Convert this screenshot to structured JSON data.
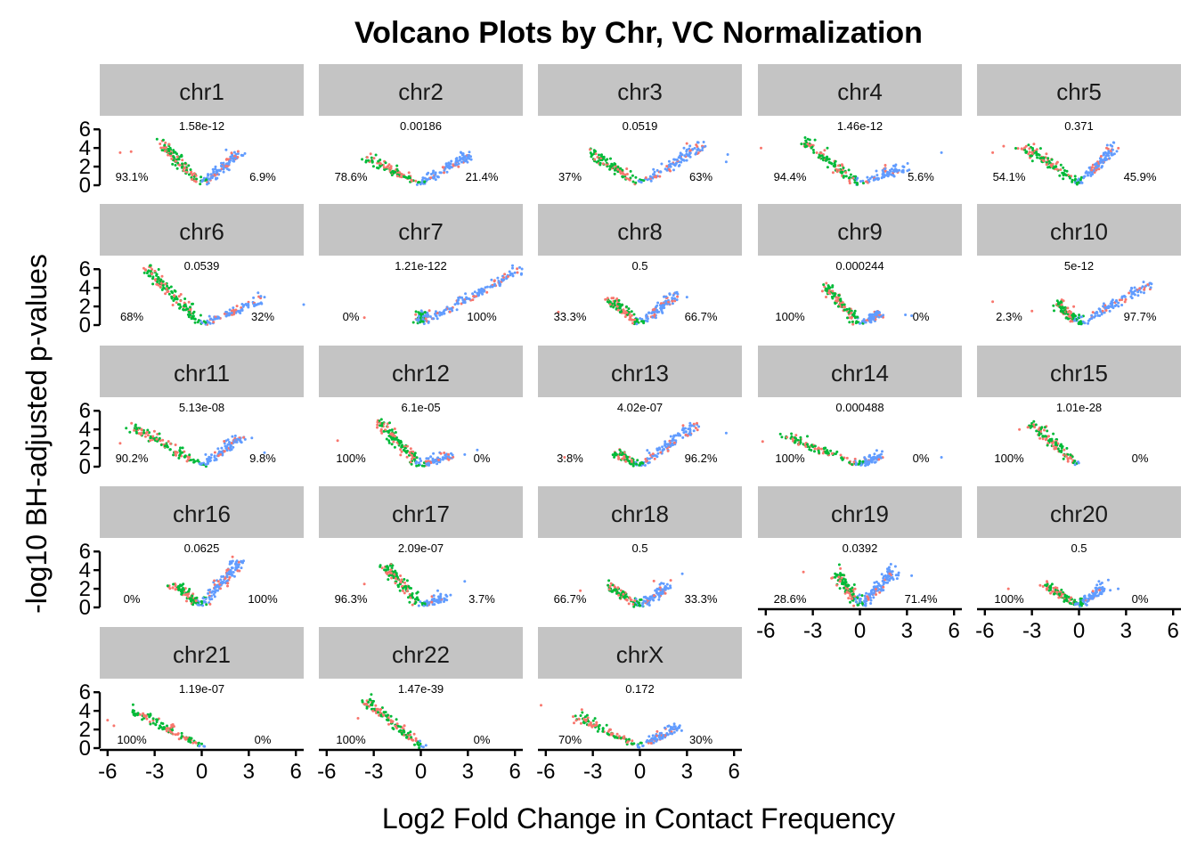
{
  "chart_data": {
    "type": "scatter",
    "title": "Volcano Plots by Chr, VC Normalization",
    "xlabel": "Log2 Fold Change in Contact Frequency",
    "ylabel": "-log10 BH-adjusted p-values",
    "xlim": [
      -6.5,
      6.5
    ],
    "ylim": [
      0,
      6.5
    ],
    "x_ticks": [
      "-6",
      "-3",
      "0",
      "3",
      "6"
    ],
    "y_ticks": [
      "0",
      "2",
      "4",
      "6"
    ],
    "grid": false,
    "legend": "none",
    "series_colors": [
      "#F8766D",
      "#00BA38",
      "#619CFF"
    ],
    "facets": [
      {
        "label": "chr1",
        "pvalue": "1.58e-12",
        "left_pct": "93.1%",
        "right_pct": "6.9%",
        "left_x": -2.5,
        "left_y": 4.0,
        "right_x": 2.3,
        "right_y": 3.0,
        "outliers": [
          [
            -5.2,
            3.5
          ],
          [
            -4.5,
            3.6
          ]
        ]
      },
      {
        "label": "chr2",
        "pvalue": "0.00186",
        "left_pct": "78.6%",
        "right_pct": "21.4%",
        "left_x": -3.5,
        "left_y": 2.6,
        "right_x": 3.0,
        "right_y": 2.8,
        "outliers": []
      },
      {
        "label": "chr3",
        "pvalue": "0.0519",
        "left_pct": "37%",
        "right_pct": "63%",
        "left_x": -3.2,
        "left_y": 3.2,
        "right_x": 4.0,
        "right_y": 3.8,
        "outliers": [
          [
            5.5,
            2.5
          ],
          [
            5.6,
            3.3
          ]
        ]
      },
      {
        "label": "chr4",
        "pvalue": "1.46e-12",
        "left_pct": "94.4%",
        "right_pct": "5.6%",
        "left_x": -3.5,
        "left_y": 4.2,
        "right_x": 2.8,
        "right_y": 1.5,
        "outliers": [
          [
            -6.3,
            4.0
          ],
          [
            5.2,
            3.5
          ]
        ]
      },
      {
        "label": "chr5",
        "pvalue": "0.371",
        "left_pct": "54.1%",
        "right_pct": "45.9%",
        "left_x": -3.5,
        "left_y": 3.8,
        "right_x": 2.2,
        "right_y": 3.6,
        "outliers": [
          [
            -4.8,
            4.2
          ],
          [
            -5.5,
            3.5
          ]
        ]
      },
      {
        "label": "chr6",
        "pvalue": "0.0539",
        "left_pct": "68%",
        "right_pct": "32%",
        "left_x": -3.5,
        "left_y": 5.8,
        "right_x": 3.8,
        "right_y": 2.2,
        "outliers": [
          [
            6.5,
            2.2
          ],
          [
            4.0,
            3.0
          ]
        ]
      },
      {
        "label": "chr7",
        "pvalue": "1.21e-122",
        "left_pct": "0%",
        "right_pct": "100%",
        "left_x": 0.2,
        "left_y": 1.0,
        "right_x": 6.4,
        "right_y": 5.5,
        "outliers": [
          [
            -3.6,
            0.8
          ]
        ]
      },
      {
        "label": "chr8",
        "pvalue": "0.5",
        "left_pct": "33.3%",
        "right_pct": "66.7%",
        "left_x": -1.9,
        "left_y": 2.5,
        "right_x": 2.3,
        "right_y": 2.9,
        "outliers": [
          [
            -5.2,
            1.4
          ],
          [
            3.0,
            3.0
          ]
        ]
      },
      {
        "label": "chr9",
        "pvalue": "0.000244",
        "left_pct": "100%",
        "right_pct": "0%",
        "left_x": -2.2,
        "left_y": 3.8,
        "right_x": 1.4,
        "right_y": 1.0,
        "outliers": [
          [
            3.3,
            1.0
          ],
          [
            2.9,
            1.1
          ]
        ]
      },
      {
        "label": "chr10",
        "pvalue": "5e-12",
        "left_pct": "2.3%",
        "right_pct": "97.7%",
        "left_x": -1.4,
        "left_y": 2.0,
        "right_x": 4.4,
        "right_y": 4.0,
        "outliers": [
          [
            -5.5,
            2.5
          ],
          [
            -3.0,
            1.5
          ]
        ]
      },
      {
        "label": "chr11",
        "pvalue": "5.13e-08",
        "left_pct": "90.2%",
        "right_pct": "9.8%",
        "left_x": -4.4,
        "left_y": 4.0,
        "right_x": 2.6,
        "right_y": 2.8,
        "outliers": [
          [
            -5.2,
            2.5
          ],
          [
            4.0,
            1.5
          ]
        ]
      },
      {
        "label": "chr12",
        "pvalue": "6.1e-05",
        "left_pct": "100%",
        "right_pct": "0%",
        "left_x": -2.7,
        "left_y": 4.5,
        "right_x": 2.0,
        "right_y": 1.0,
        "outliers": [
          [
            -5.3,
            2.8
          ],
          [
            3.6,
            1.8
          ],
          [
            2.8,
            1.3
          ]
        ]
      },
      {
        "label": "chr13",
        "pvalue": "4.02e-07",
        "left_pct": "3.8%",
        "right_pct": "96.2%",
        "left_x": -1.5,
        "left_y": 1.0,
        "right_x": 3.5,
        "right_y": 4.0,
        "outliers": [
          [
            -4.8,
            1.0
          ],
          [
            5.5,
            3.6
          ]
        ]
      },
      {
        "label": "chr14",
        "pvalue": "0.000488",
        "left_pct": "100%",
        "right_pct": "0%",
        "left_x": -4.8,
        "left_y": 3.0,
        "right_x": 1.3,
        "right_y": 1.0,
        "outliers": [
          [
            -6.2,
            2.7
          ],
          [
            5.2,
            1.0
          ]
        ]
      },
      {
        "label": "chr15",
        "pvalue": "1.01e-28",
        "left_pct": "100%",
        "right_pct": "0%",
        "left_x": -3.0,
        "left_y": 4.2,
        "right_x": 0.0,
        "right_y": 0.0,
        "outliers": [
          [
            -3.8,
            4.0
          ]
        ]
      },
      {
        "label": "chr16",
        "pvalue": "0.0625",
        "left_pct": "0%",
        "right_pct": "100%",
        "left_x": -1.8,
        "left_y": 2.2,
        "right_x": 2.4,
        "right_y": 4.5,
        "outliers": []
      },
      {
        "label": "chr17",
        "pvalue": "2.09e-07",
        "left_pct": "96.3%",
        "right_pct": "3.7%",
        "left_x": -2.2,
        "left_y": 4.0,
        "right_x": 1.6,
        "right_y": 0.8,
        "outliers": [
          [
            2.8,
            2.8
          ],
          [
            -3.6,
            2.5
          ]
        ]
      },
      {
        "label": "chr18",
        "pvalue": "0.5",
        "left_pct": "66.7%",
        "right_pct": "33.3%",
        "left_x": -2.0,
        "left_y": 2.0,
        "right_x": 1.8,
        "right_y": 2.0,
        "outliers": [
          [
            2.7,
            3.6
          ],
          [
            -3.8,
            1.8
          ]
        ]
      },
      {
        "label": "chr19",
        "pvalue": "0.0392",
        "left_pct": "28.6%",
        "right_pct": "71.4%",
        "left_x": -1.5,
        "left_y": 3.5,
        "right_x": 2.2,
        "right_y": 3.6,
        "outliers": [
          [
            -3.6,
            3.8
          ],
          [
            3.3,
            3.4
          ]
        ]
      },
      {
        "label": "chr20",
        "pvalue": "0.5",
        "left_pct": "100%",
        "right_pct": "0%",
        "left_x": -2.2,
        "left_y": 2.2,
        "right_x": 1.5,
        "right_y": 1.8,
        "outliers": [
          [
            -4.5,
            2.0
          ],
          [
            2.5,
            2.0
          ]
        ]
      },
      {
        "label": "chr21",
        "pvalue": "1.19e-07",
        "left_pct": "100%",
        "right_pct": "0%",
        "left_x": -4.3,
        "left_y": 3.6,
        "right_x": 0.0,
        "right_y": 0.0,
        "outliers": [
          [
            -6.0,
            3.0
          ],
          [
            -5.6,
            2.4
          ]
        ]
      },
      {
        "label": "chr22",
        "pvalue": "1.47e-39",
        "left_pct": "100%",
        "right_pct": "0%",
        "left_x": -3.5,
        "left_y": 4.8,
        "right_x": 0.0,
        "right_y": 0.0,
        "outliers": [
          [
            -4.0,
            3.2
          ]
        ]
      },
      {
        "label": "chrX",
        "pvalue": "0.172",
        "left_pct": "70%",
        "right_pct": "30%",
        "left_x": -4.0,
        "left_y": 3.0,
        "right_x": 2.5,
        "right_y": 2.0,
        "outliers": [
          [
            -6.3,
            4.6
          ],
          [
            -4.2,
            2.7
          ]
        ]
      }
    ]
  }
}
